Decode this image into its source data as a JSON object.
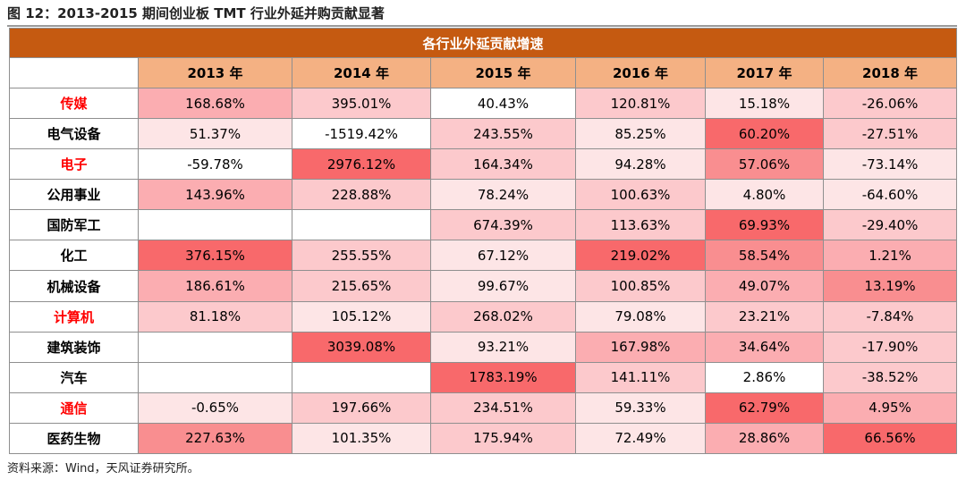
{
  "figure": {
    "title": "图 12：2013-2015 期间创业板 TMT 行业外延并购贡献显著",
    "source": "资料来源：Wind，天风证券研究所。"
  },
  "table": {
    "banner": "各行业外延贡献增速",
    "years": [
      "2013 年",
      "2014 年",
      "2015 年",
      "2016 年",
      "2017 年",
      "2018 年"
    ],
    "colors": {
      "header_band": "#c55a11",
      "year_band": "#f4b183",
      "tmt_text": "#ff0000",
      "heat": [
        "#ffffff",
        "#fde5e6",
        "#fcc9cc",
        "#fbadb1",
        "#f98e90",
        "#f8696b"
      ]
    },
    "rows": [
      {
        "industry": "传媒",
        "tmt": true,
        "values": [
          "168.68%",
          "395.01%",
          "40.43%",
          "120.81%",
          "15.18%",
          "-26.06%"
        ],
        "heat": [
          3,
          2,
          0,
          2,
          1,
          2
        ]
      },
      {
        "industry": "电气设备",
        "tmt": false,
        "values": [
          "51.37%",
          "-1519.42%",
          "243.55%",
          "85.25%",
          "60.20%",
          "-27.51%"
        ],
        "heat": [
          1,
          0,
          2,
          1,
          5,
          2
        ]
      },
      {
        "industry": "电子",
        "tmt": true,
        "values": [
          "-59.78%",
          "2976.12%",
          "164.34%",
          "94.28%",
          "57.06%",
          "-73.14%"
        ],
        "heat": [
          0,
          5,
          2,
          1,
          4,
          1
        ]
      },
      {
        "industry": "公用事业",
        "tmt": false,
        "values": [
          "143.96%",
          "228.88%",
          "78.24%",
          "100.63%",
          "4.80%",
          "-64.60%"
        ],
        "heat": [
          3,
          2,
          1,
          2,
          1,
          1
        ]
      },
      {
        "industry": "国防军工",
        "tmt": false,
        "values": [
          "",
          "",
          "674.39%",
          "113.63%",
          "69.93%",
          "-29.40%"
        ],
        "heat": [
          0,
          0,
          2,
          2,
          5,
          2
        ]
      },
      {
        "industry": "化工",
        "tmt": false,
        "values": [
          "376.15%",
          "255.55%",
          "67.12%",
          "219.02%",
          "58.54%",
          "1.21%"
        ],
        "heat": [
          5,
          2,
          1,
          5,
          4,
          3
        ]
      },
      {
        "industry": "机械设备",
        "tmt": false,
        "values": [
          "186.61%",
          "215.65%",
          "99.67%",
          "100.85%",
          "49.07%",
          "13.19%"
        ],
        "heat": [
          3,
          2,
          1,
          2,
          3,
          4
        ]
      },
      {
        "industry": "计算机",
        "tmt": true,
        "values": [
          "81.18%",
          "105.12%",
          "268.02%",
          "79.08%",
          "23.21%",
          "-7.84%"
        ],
        "heat": [
          2,
          1,
          2,
          1,
          2,
          2
        ]
      },
      {
        "industry": "建筑装饰",
        "tmt": false,
        "values": [
          "",
          "3039.08%",
          "93.21%",
          "167.98%",
          "34.64%",
          "-17.90%"
        ],
        "heat": [
          0,
          5,
          1,
          3,
          3,
          2
        ]
      },
      {
        "industry": "汽车",
        "tmt": false,
        "values": [
          "",
          "",
          "1783.19%",
          "141.11%",
          "2.86%",
          "-38.52%"
        ],
        "heat": [
          0,
          0,
          5,
          2,
          0,
          2
        ]
      },
      {
        "industry": "通信",
        "tmt": true,
        "values": [
          "-0.65%",
          "197.66%",
          "234.51%",
          "59.33%",
          "62.79%",
          "4.95%"
        ],
        "heat": [
          1,
          2,
          2,
          1,
          5,
          3
        ]
      },
      {
        "industry": "医药生物",
        "tmt": false,
        "values": [
          "227.63%",
          "101.35%",
          "175.94%",
          "72.49%",
          "28.86%",
          "66.56%"
        ],
        "heat": [
          4,
          1,
          2,
          1,
          3,
          5
        ]
      }
    ]
  }
}
